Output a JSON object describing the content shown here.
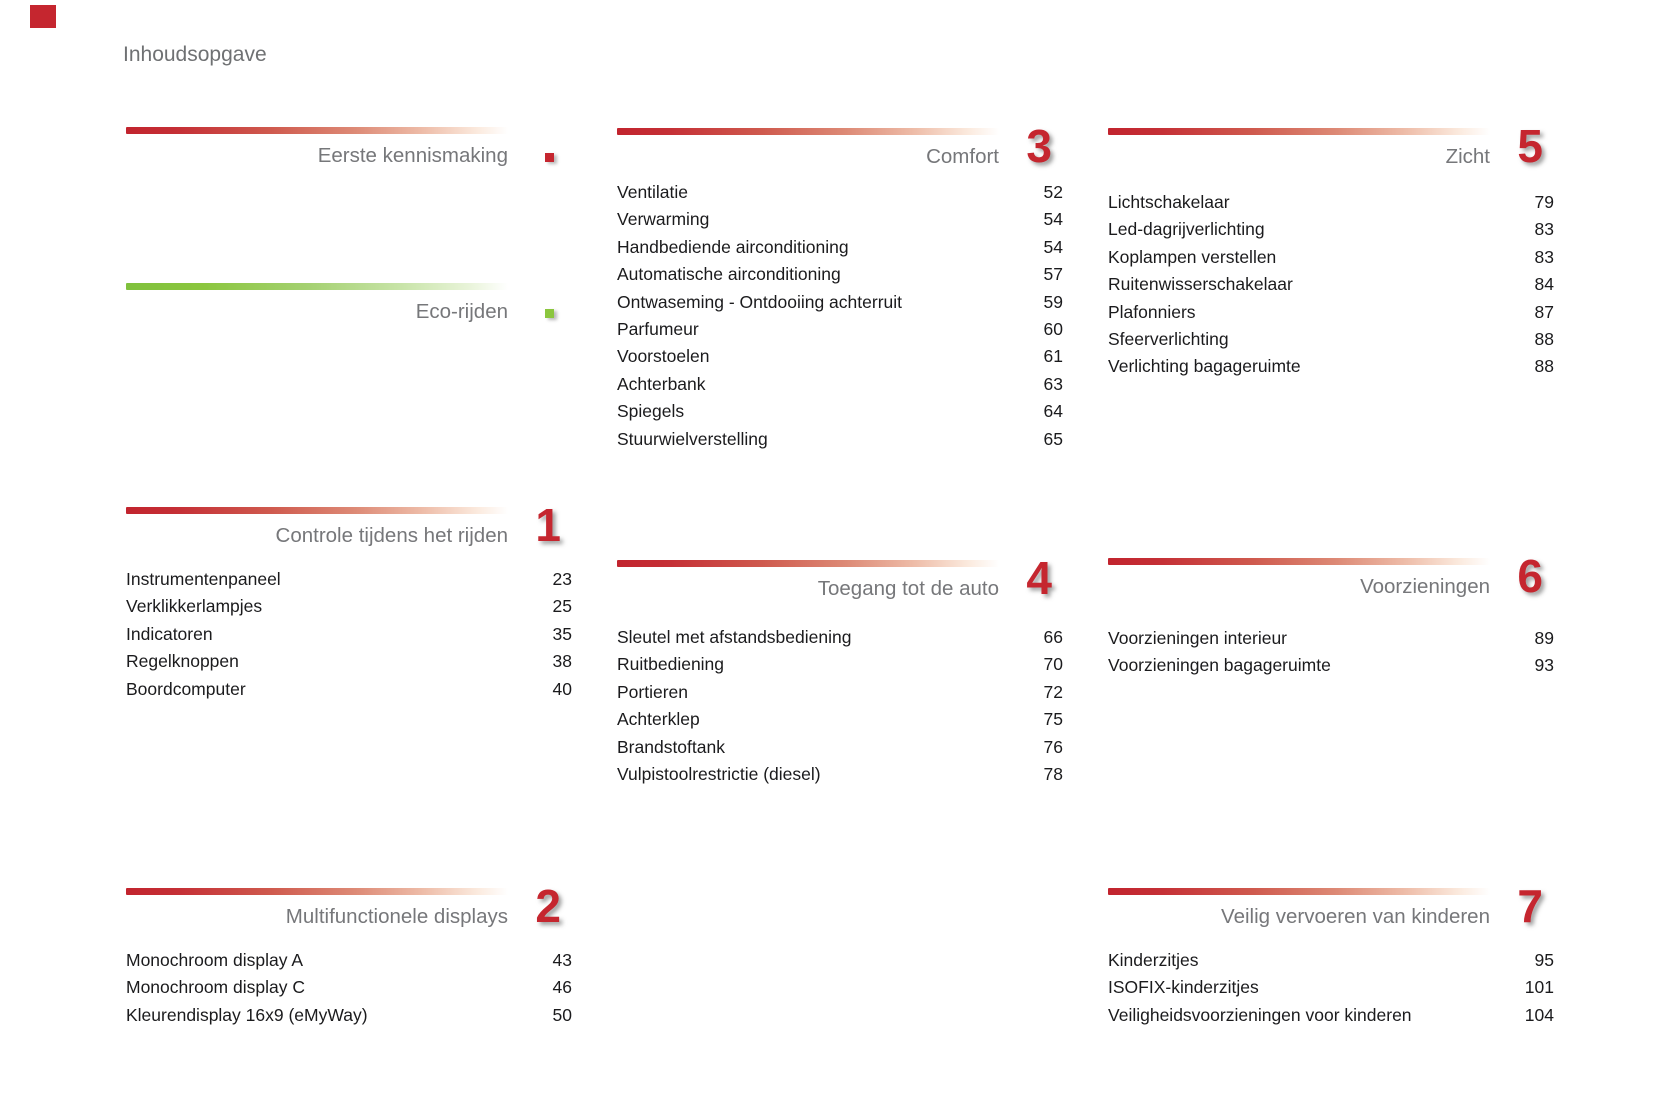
{
  "page": {
    "title": "Inhoudsopgave"
  },
  "colors": {
    "accent_red": "#c5262f",
    "accent_green": "#8bc63e",
    "title_gray": "#76777a",
    "text_dark": "#1b1b1d"
  },
  "sections": [
    {
      "key": "intro",
      "title": "Eerste kennismaking",
      "marker": "red",
      "number": null,
      "items": []
    },
    {
      "key": "eco",
      "title": "Eco-rijden",
      "marker": "green",
      "number": null,
      "items": []
    },
    {
      "key": "s1",
      "title": "Controle tijdens het rijden",
      "marker": null,
      "number": "1",
      "items": [
        {
          "label": "Instrumentenpaneel",
          "page": "23"
        },
        {
          "label": "Verklikkerlampjes",
          "page": "25"
        },
        {
          "label": "Indicatoren",
          "page": "35"
        },
        {
          "label": "Regelknoppen",
          "page": "38"
        },
        {
          "label": "Boordcomputer",
          "page": "40"
        }
      ]
    },
    {
      "key": "s2",
      "title": "Multifunctionele displays",
      "marker": null,
      "number": "2",
      "items": [
        {
          "label": "Monochroom display A",
          "page": "43"
        },
        {
          "label": "Monochroom display C",
          "page": "46"
        },
        {
          "label": "Kleurendisplay 16x9 (eMyWay)",
          "page": "50"
        }
      ]
    },
    {
      "key": "s3",
      "title": "Comfort",
      "marker": null,
      "number": "3",
      "items": [
        {
          "label": "Ventilatie",
          "page": "52"
        },
        {
          "label": "Verwarming",
          "page": "54"
        },
        {
          "label": "Handbediende airconditioning",
          "page": "54"
        },
        {
          "label": "Automatische airconditioning",
          "page": "57"
        },
        {
          "label": "Ontwaseming - Ontdooiing achterruit",
          "page": "59"
        },
        {
          "label": "Parfumeur",
          "page": "60"
        },
        {
          "label": "Voorstoelen",
          "page": "61"
        },
        {
          "label": "Achterbank",
          "page": "63"
        },
        {
          "label": "Spiegels",
          "page": "64"
        },
        {
          "label": "Stuurwielverstelling",
          "page": "65"
        }
      ]
    },
    {
      "key": "s4",
      "title": "Toegang tot de auto",
      "marker": null,
      "number": "4",
      "items": [
        {
          "label": "Sleutel met afstandsbediening",
          "page": "66"
        },
        {
          "label": "Ruitbediening",
          "page": "70"
        },
        {
          "label": "Portieren",
          "page": "72"
        },
        {
          "label": "Achterklep",
          "page": "75"
        },
        {
          "label": "Brandstoftank",
          "page": "76"
        },
        {
          "label": "Vulpistoolrestrictie (diesel)",
          "page": "78"
        }
      ]
    },
    {
      "key": "s5",
      "title": "Zicht",
      "marker": null,
      "number": "5",
      "items": [
        {
          "label": "Lichtschakelaar",
          "page": "79"
        },
        {
          "label": "Led-dagrijverlichting",
          "page": "83"
        },
        {
          "label": "Koplampen verstellen",
          "page": "83"
        },
        {
          "label": "Ruitenwisserschakelaar",
          "page": "84"
        },
        {
          "label": "Plafonniers",
          "page": "87"
        },
        {
          "label": "Sfeerverlichting",
          "page": "88"
        },
        {
          "label": "Verlichting bagageruimte",
          "page": "88"
        }
      ]
    },
    {
      "key": "s6",
      "title": "Voorzieningen",
      "marker": null,
      "number": "6",
      "items": [
        {
          "label": "Voorzieningen interieur",
          "page": "89"
        },
        {
          "label": "Voorzieningen bagageruimte",
          "page": "93"
        }
      ]
    },
    {
      "key": "s7",
      "title": "Veilig vervoeren van kinderen",
      "marker": null,
      "number": "7",
      "items": [
        {
          "label": "Kinderzitjes",
          "page": "95"
        },
        {
          "label": "ISOFIX-kinderzitjes",
          "page": "101"
        },
        {
          "label": "Veiligheidsvoorzieningen voor kinderen",
          "page": "104"
        }
      ]
    }
  ]
}
